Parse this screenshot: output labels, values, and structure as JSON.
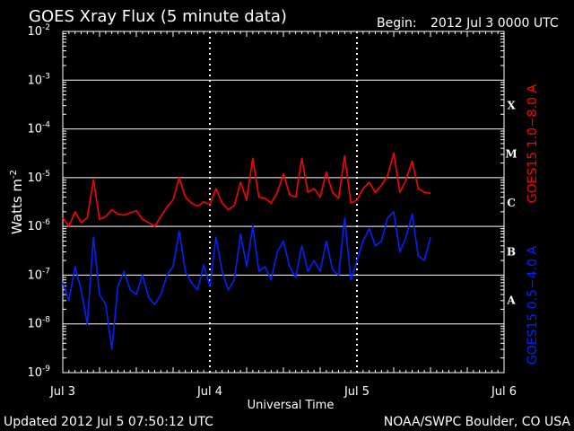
{
  "header": {
    "title": "GOES Xray Flux (5 minute data)",
    "begin_label": "Begin:",
    "begin_value": "2012 Jul 3 0000 UTC"
  },
  "footer": {
    "updated": "Updated 2012 Jul  5 07:50:12 UTC",
    "credit": "NOAA/SWPC Boulder, CO USA"
  },
  "colors": {
    "background": "#000000",
    "foreground": "#ffffff",
    "long_channel": "#ff0000",
    "short_channel": "#0022ff"
  },
  "chart_data": {
    "type": "line",
    "xlabel": "Universal Time",
    "ylabel_base": "Watts m",
    "ylabel_exp": "-2",
    "x_unit": "day",
    "xlim": [
      "2012-07-03T00:00Z",
      "2012-07-06T00:00Z"
    ],
    "x_tick_labels": [
      "Jul 3",
      "Jul 4",
      "Jul 5",
      "Jul 6"
    ],
    "y_scale": "log",
    "ylim": [
      1e-09,
      0.01
    ],
    "y_ticks": [
      {
        "base": "10",
        "exp": "-2"
      },
      {
        "base": "10",
        "exp": "-3"
      },
      {
        "base": "10",
        "exp": "-4"
      },
      {
        "base": "10",
        "exp": "-5"
      },
      {
        "base": "10",
        "exp": "-6"
      },
      {
        "base": "10",
        "exp": "-7"
      },
      {
        "base": "10",
        "exp": "-8"
      },
      {
        "base": "10",
        "exp": "-9"
      }
    ],
    "flare_classes": [
      "X",
      "M",
      "C",
      "B",
      "A"
    ],
    "grid": "horizontal at each decade, dotted vertical at each day",
    "series": [
      {
        "name": "GOES15 1.0−8.0 A",
        "color": "#ff0000",
        "points": [
          [
            "2012-07-03T00:00Z",
            1.5e-06
          ],
          [
            "2012-07-03T01:00Z",
            1e-06
          ],
          [
            "2012-07-03T02:00Z",
            2e-06
          ],
          [
            "2012-07-03T03:00Z",
            1.2e-06
          ],
          [
            "2012-07-03T04:00Z",
            1.5e-06
          ],
          [
            "2012-07-03T05:00Z",
            9e-06
          ],
          [
            "2012-07-03T06:00Z",
            1.4e-06
          ],
          [
            "2012-07-03T07:00Z",
            1.6e-06
          ],
          [
            "2012-07-03T08:00Z",
            2.2e-06
          ],
          [
            "2012-07-03T09:00Z",
            1.8e-06
          ],
          [
            "2012-07-03T10:00Z",
            1.7e-06
          ],
          [
            "2012-07-03T11:00Z",
            1.9e-06
          ],
          [
            "2012-07-03T12:00Z",
            2.1e-06
          ],
          [
            "2012-07-03T13:00Z",
            1.4e-06
          ],
          [
            "2012-07-03T14:00Z",
            1.2e-06
          ],
          [
            "2012-07-03T15:00Z",
            1e-06
          ],
          [
            "2012-07-03T16:00Z",
            1.6e-06
          ],
          [
            "2012-07-03T17:00Z",
            2.5e-06
          ],
          [
            "2012-07-03T18:00Z",
            3.5e-06
          ],
          [
            "2012-07-03T19:00Z",
            1e-05
          ],
          [
            "2012-07-03T20:00Z",
            4e-06
          ],
          [
            "2012-07-03T21:00Z",
            3e-06
          ],
          [
            "2012-07-03T22:00Z",
            2.6e-06
          ],
          [
            "2012-07-03T23:00Z",
            3.2e-06
          ],
          [
            "2012-07-04T00:00Z",
            2.8e-06
          ],
          [
            "2012-07-04T01:00Z",
            6e-06
          ],
          [
            "2012-07-04T02:00Z",
            3e-06
          ],
          [
            "2012-07-04T03:00Z",
            2.2e-06
          ],
          [
            "2012-07-04T04:00Z",
            2.7e-06
          ],
          [
            "2012-07-04T05:00Z",
            8e-06
          ],
          [
            "2012-07-04T06:00Z",
            3.5e-06
          ],
          [
            "2012-07-04T07:00Z",
            2.5e-05
          ],
          [
            "2012-07-04T08:00Z",
            4e-06
          ],
          [
            "2012-07-04T09:00Z",
            3.8e-06
          ],
          [
            "2012-07-04T10:00Z",
            3e-06
          ],
          [
            "2012-07-04T11:00Z",
            5e-06
          ],
          [
            "2012-07-04T12:00Z",
            1.2e-05
          ],
          [
            "2012-07-04T13:00Z",
            4.5e-06
          ],
          [
            "2012-07-04T14:00Z",
            4e-06
          ],
          [
            "2012-07-04T15:00Z",
            2.5e-05
          ],
          [
            "2012-07-04T16:00Z",
            5e-06
          ],
          [
            "2012-07-04T17:00Z",
            6e-06
          ],
          [
            "2012-07-04T18:00Z",
            4e-06
          ],
          [
            "2012-07-04T19:00Z",
            1.3e-05
          ],
          [
            "2012-07-04T20:00Z",
            5e-06
          ],
          [
            "2012-07-04T21:00Z",
            3.8e-06
          ],
          [
            "2012-07-04T22:00Z",
            2.8e-05
          ],
          [
            "2012-07-04T23:00Z",
            3e-06
          ],
          [
            "2012-07-05T00:00Z",
            3.5e-06
          ],
          [
            "2012-07-05T01:00Z",
            6e-06
          ],
          [
            "2012-07-05T02:00Z",
            8e-06
          ],
          [
            "2012-07-05T03:00Z",
            5e-06
          ],
          [
            "2012-07-05T04:00Z",
            7e-06
          ],
          [
            "2012-07-05T05:00Z",
            1.1e-05
          ],
          [
            "2012-07-05T06:00Z",
            3.2e-05
          ],
          [
            "2012-07-05T07:00Z",
            5e-06
          ],
          [
            "2012-07-05T08:00Z",
            9e-06
          ],
          [
            "2012-07-05T09:00Z",
            2.2e-05
          ],
          [
            "2012-07-05T10:00Z",
            6e-06
          ],
          [
            "2012-07-05T11:00Z",
            5e-06
          ],
          [
            "2012-07-05T12:00Z",
            4.8e-06
          ]
        ]
      },
      {
        "name": "GOES15 0.5−4.0 A",
        "color": "#0022ff",
        "points": [
          [
            "2012-07-03T00:00Z",
            7e-08
          ],
          [
            "2012-07-03T01:00Z",
            3e-08
          ],
          [
            "2012-07-03T02:00Z",
            1.5e-07
          ],
          [
            "2012-07-03T03:00Z",
            5e-08
          ],
          [
            "2012-07-03T04:00Z",
            1e-08
          ],
          [
            "2012-07-03T05:00Z",
            6e-07
          ],
          [
            "2012-07-03T06:00Z",
            4e-08
          ],
          [
            "2012-07-03T07:00Z",
            2.5e-08
          ],
          [
            "2012-07-03T08:00Z",
            3e-09
          ],
          [
            "2012-07-03T09:00Z",
            6e-08
          ],
          [
            "2012-07-03T10:00Z",
            1.2e-07
          ],
          [
            "2012-07-03T11:00Z",
            5e-08
          ],
          [
            "2012-07-03T12:00Z",
            4e-08
          ],
          [
            "2012-07-03T13:00Z",
            1e-07
          ],
          [
            "2012-07-03T14:00Z",
            3.5e-08
          ],
          [
            "2012-07-03T15:00Z",
            2.5e-08
          ],
          [
            "2012-07-03T16:00Z",
            4e-08
          ],
          [
            "2012-07-03T17:00Z",
            1e-07
          ],
          [
            "2012-07-03T18:00Z",
            1.5e-07
          ],
          [
            "2012-07-03T19:00Z",
            8e-07
          ],
          [
            "2012-07-03T20:00Z",
            1.2e-07
          ],
          [
            "2012-07-03T21:00Z",
            7e-08
          ],
          [
            "2012-07-03T22:00Z",
            5e-08
          ],
          [
            "2012-07-03T23:00Z",
            1.6e-07
          ],
          [
            "2012-07-04T00:00Z",
            6e-08
          ],
          [
            "2012-07-04T01:00Z",
            6e-07
          ],
          [
            "2012-07-04T02:00Z",
            1.2e-07
          ],
          [
            "2012-07-04T03:00Z",
            5e-08
          ],
          [
            "2012-07-04T04:00Z",
            8e-08
          ],
          [
            "2012-07-04T05:00Z",
            7e-07
          ],
          [
            "2012-07-04T06:00Z",
            1.5e-07
          ],
          [
            "2012-07-04T07:00Z",
            1e-06
          ],
          [
            "2012-07-04T08:00Z",
            1.2e-07
          ],
          [
            "2012-07-04T09:00Z",
            1.5e-07
          ],
          [
            "2012-07-04T10:00Z",
            8e-08
          ],
          [
            "2012-07-04T11:00Z",
            3e-07
          ],
          [
            "2012-07-04T12:00Z",
            5e-07
          ],
          [
            "2012-07-04T13:00Z",
            1.5e-07
          ],
          [
            "2012-07-04T14:00Z",
            9e-08
          ],
          [
            "2012-07-04T15:00Z",
            4e-07
          ],
          [
            "2012-07-04T16:00Z",
            1.2e-07
          ],
          [
            "2012-07-04T17:00Z",
            2e-07
          ],
          [
            "2012-07-04T18:00Z",
            1.2e-07
          ],
          [
            "2012-07-04T19:00Z",
            5e-07
          ],
          [
            "2012-07-04T20:00Z",
            1.3e-07
          ],
          [
            "2012-07-04T21:00Z",
            1e-07
          ],
          [
            "2012-07-04T22:00Z",
            1.5e-06
          ],
          [
            "2012-07-04T23:00Z",
            8e-08
          ],
          [
            "2012-07-05T00:00Z",
            2e-07
          ],
          [
            "2012-07-05T01:00Z",
            5e-07
          ],
          [
            "2012-07-05T02:00Z",
            9e-07
          ],
          [
            "2012-07-05T03:00Z",
            4e-07
          ],
          [
            "2012-07-05T04:00Z",
            5e-07
          ],
          [
            "2012-07-05T05:00Z",
            1.5e-06
          ],
          [
            "2012-07-05T06:00Z",
            2e-06
          ],
          [
            "2012-07-05T07:00Z",
            3e-07
          ],
          [
            "2012-07-05T08:00Z",
            6e-07
          ],
          [
            "2012-07-05T09:00Z",
            1.8e-06
          ],
          [
            "2012-07-05T10:00Z",
            2.5e-07
          ],
          [
            "2012-07-05T11:00Z",
            2e-07
          ],
          [
            "2012-07-05T12:00Z",
            6e-07
          ]
        ]
      }
    ]
  }
}
